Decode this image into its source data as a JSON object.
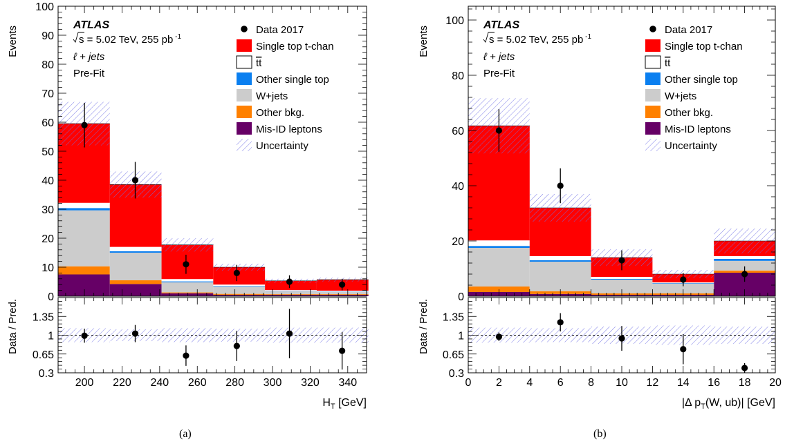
{
  "chart_data": [
    {
      "type": "bar",
      "panel": "(a)",
      "experiment": "ATLAS",
      "energy_text": "s = 5.02 TeV, 255 pb",
      "lumi_exp": "-1",
      "channel_prefix": "ℓ",
      "channel_rest": " + jets",
      "stage": "Pre-Fit",
      "ylabel": "Events",
      "ratio_ylabel": "Data / Pred.",
      "xlabel": "H",
      "xlabel_sub": "T",
      "xlabel_unit": " [GeV]",
      "xlim": [
        186,
        350
      ],
      "ylim": [
        0,
        100
      ],
      "ratio_ylim": [
        0.3,
        1.7
      ],
      "x_ticks": [
        200,
        220,
        240,
        260,
        280,
        300,
        320,
        340
      ],
      "y_ticks": [
        0,
        10,
        20,
        30,
        40,
        50,
        60,
        70,
        80,
        90,
        100
      ],
      "ratio_ticks": [
        "0.3",
        "0.65",
        "1",
        "1.35"
      ],
      "bin_edges": [
        186,
        213.5,
        241,
        268.5,
        296,
        323.5,
        351
      ],
      "stack": [
        {
          "key": "misid",
          "values": [
            7.5,
            4.2,
            1.0,
            0.5,
            0.5,
            0.5
          ]
        },
        {
          "key": "otherbkg",
          "values": [
            2.8,
            1.3,
            0.3,
            0.3,
            0.2,
            0.2
          ]
        },
        {
          "key": "wjets",
          "values": [
            19.3,
            9.5,
            3.5,
            2.5,
            1.0,
            0.8
          ]
        },
        {
          "key": "othersingle",
          "values": [
            0.8,
            0.5,
            0.3,
            0.2,
            0.1,
            0.1
          ]
        },
        {
          "key": "ttbar",
          "values": [
            1.8,
            1.5,
            0.8,
            0.5,
            0.3,
            0.3
          ]
        },
        {
          "key": "tchan",
          "values": [
            27.3,
            21.5,
            11.8,
            6.0,
            3.2,
            3.8
          ]
        }
      ],
      "uncertainty": [
        7.5,
        4.5,
        2.3,
        1.2,
        0.7,
        0.7
      ],
      "data": {
        "x": [
          200,
          227,
          254,
          281,
          309,
          337
        ],
        "y": [
          59,
          40,
          11,
          8,
          5,
          4
        ],
        "err": [
          7.7,
          6.3,
          3.3,
          2.8,
          2.2,
          2.0
        ]
      },
      "ratio": {
        "y": [
          0.99,
          1.03,
          0.62,
          0.8,
          1.03,
          0.71
        ],
        "err": [
          0.13,
          0.16,
          0.19,
          0.28,
          0.46,
          0.35
        ],
        "band": [
          0.13,
          0.11,
          0.13,
          0.12,
          0.14,
          0.14
        ]
      }
    },
    {
      "type": "bar",
      "panel": "(b)",
      "experiment": "ATLAS",
      "energy_text": "s = 5.02 TeV, 255 pb",
      "lumi_exp": "-1",
      "channel_prefix": "ℓ",
      "channel_rest": " + jets",
      "stage": "Pre-Fit",
      "ylabel": "Events",
      "ratio_ylabel": "Data / Pred.",
      "xlabel": "|Δ p",
      "xlabel_sub": "T",
      "xlabel_unit": "(W, ub)| [GeV]",
      "xlim": [
        0,
        20
      ],
      "ylim": [
        0,
        105
      ],
      "ratio_ylim": [
        0.3,
        1.7
      ],
      "x_ticks": [
        0,
        2,
        4,
        6,
        8,
        10,
        12,
        14,
        16,
        18,
        20
      ],
      "y_ticks": [
        0,
        20,
        40,
        60,
        80,
        100
      ],
      "ratio_ticks": [
        "0.3",
        "0.65",
        "1",
        "1.35"
      ],
      "bin_edges": [
        0,
        4,
        8,
        12,
        16,
        20
      ],
      "stack": [
        {
          "key": "misid",
          "values": [
            1.5,
            0.8,
            0.5,
            0.5,
            8.5
          ]
        },
        {
          "key": "otherbkg",
          "values": [
            2.0,
            1.0,
            0.5,
            0.5,
            0.8
          ]
        },
        {
          "key": "wjets",
          "values": [
            14.0,
            10.7,
            5.0,
            3.5,
            3.5
          ]
        },
        {
          "key": "othersingle",
          "values": [
            0.7,
            0.5,
            0.3,
            0.2,
            0.7
          ]
        },
        {
          "key": "ttbar",
          "values": [
            2.0,
            1.5,
            0.7,
            0.3,
            1.0
          ]
        },
        {
          "key": "tchan",
          "values": [
            41.5,
            17.5,
            7.0,
            3.0,
            5.5
          ]
        }
      ],
      "uncertainty": [
        10,
        5,
        3,
        1.5,
        4.5
      ],
      "data": {
        "x": [
          2,
          6,
          10,
          14,
          18
        ],
        "y": [
          60,
          40,
          13,
          6,
          8
        ],
        "err": [
          7.7,
          6.3,
          3.6,
          2.4,
          2.8
        ]
      },
      "ratio": {
        "y": [
          0.97,
          1.24,
          0.94,
          0.74,
          0.39
        ],
        "err": [
          0.08,
          0.17,
          0.23,
          0.28,
          0.09
        ],
        "band": [
          0.14,
          0.13,
          0.16,
          0.18,
          0.16
        ]
      }
    }
  ],
  "legend": [
    {
      "key": "data",
      "label": "Data 2017",
      "symbol": "marker",
      "color": "#000000"
    },
    {
      "key": "tchan",
      "label": "Single top t-chan",
      "symbol": "box",
      "color": "#ff0000"
    },
    {
      "key": "ttbar",
      "label": "tt",
      "symbol": "box",
      "color": "#ffffff",
      "overline": true
    },
    {
      "key": "othersingle",
      "label": "Other single top",
      "symbol": "box",
      "color": "#0a7ff0"
    },
    {
      "key": "wjets",
      "label": "W+jets",
      "symbol": "box",
      "color": "#cccccc"
    },
    {
      "key": "otherbkg",
      "label": "Other bkg.",
      "symbol": "box",
      "color": "#ff8000"
    },
    {
      "key": "misid",
      "label": "Mis-ID leptons",
      "symbol": "box",
      "color": "#660066"
    },
    {
      "key": "unc",
      "label": "Uncertainty",
      "symbol": "hatch",
      "color": "#6f6fe6"
    }
  ],
  "captions": [
    "(a)",
    "(b)"
  ]
}
